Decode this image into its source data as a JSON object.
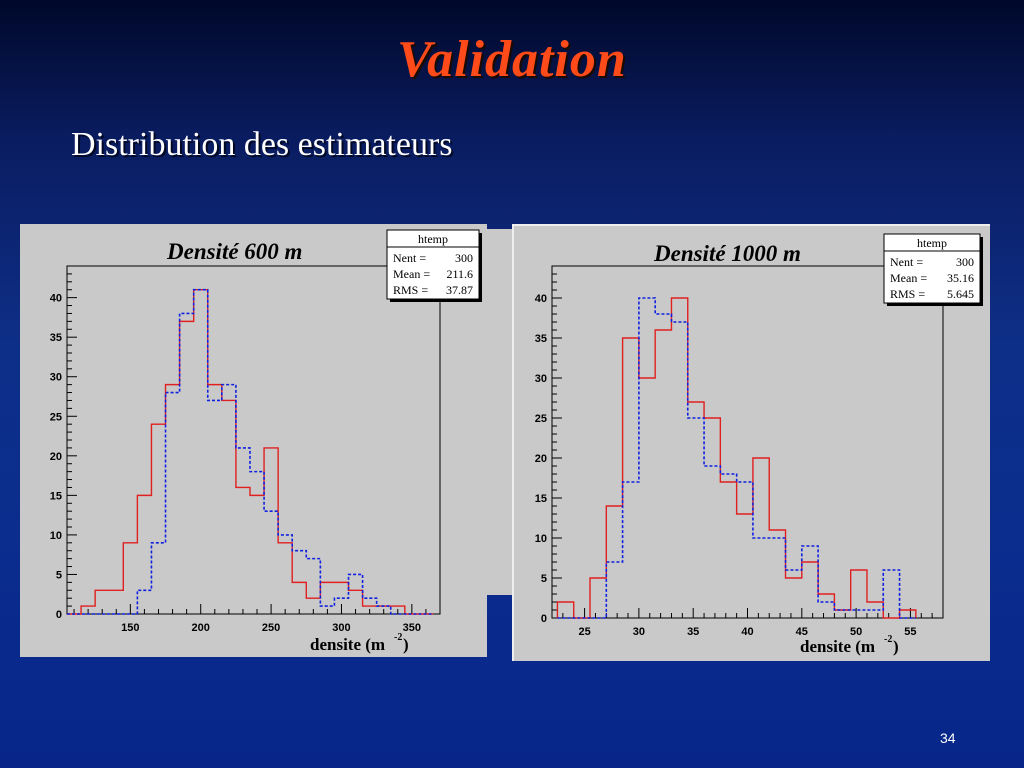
{
  "slide": {
    "title": "Validation",
    "subtitle": "Distribution des estimateurs",
    "page_number": "34"
  },
  "colors": {
    "red_series": "#e02020",
    "blue_series": "#1020e0"
  },
  "chart_data": [
    {
      "type": "bar",
      "style": "step-histogram",
      "title": "Densité 600 m",
      "xlabel": "densite (m",
      "xlabel_sup": "-2",
      "xlabel_close": ")",
      "ylabel": "",
      "xlim": [
        105,
        370
      ],
      "ylim": [
        0,
        44
      ],
      "x_ticks": [
        150,
        200,
        250,
        300,
        350
      ],
      "y_ticks": [
        0,
        5,
        10,
        15,
        20,
        25,
        30,
        35,
        40
      ],
      "grid": false,
      "stats_box": {
        "name": "htemp",
        "lines": [
          {
            "label": "Nent = ",
            "value": "300"
          },
          {
            "label": "Mean  = ",
            "value": "211.6"
          },
          {
            "label": "RMS   = ",
            "value": "37.87"
          }
        ]
      },
      "series": [
        {
          "line": "solid",
          "bin_edges": [
            105,
            115,
            125,
            135,
            145,
            155,
            165,
            175,
            185,
            195,
            205,
            215,
            225,
            235,
            245,
            255,
            265,
            275,
            285,
            295,
            305,
            315,
            325,
            335,
            345,
            355,
            365
          ],
          "values": [
            0,
            1,
            3,
            3,
            9,
            15,
            24,
            29,
            37,
            41,
            29,
            27,
            16,
            15,
            21,
            9,
            4,
            2,
            4,
            4,
            3,
            1,
            1,
            1,
            0,
            0
          ]
        },
        {
          "line": "dashed",
          "bin_edges": [
            105,
            115,
            125,
            135,
            145,
            155,
            165,
            175,
            185,
            195,
            205,
            215,
            225,
            235,
            245,
            255,
            265,
            275,
            285,
            295,
            305,
            315,
            325,
            335,
            345,
            355,
            365
          ],
          "values": [
            0,
            0,
            0,
            0,
            0,
            3,
            9,
            28,
            38,
            41,
            27,
            29,
            21,
            18,
            13,
            10,
            8,
            7,
            1,
            2,
            5,
            2,
            1,
            0,
            0,
            0
          ]
        }
      ]
    },
    {
      "type": "bar",
      "style": "step-histogram",
      "title": "Densité 1000 m",
      "xlabel": "densite (m",
      "xlabel_sup": "-2",
      "xlabel_close": ")",
      "ylabel": "",
      "xlim": [
        22,
        58
      ],
      "ylim": [
        0,
        44
      ],
      "x_ticks": [
        25,
        30,
        35,
        40,
        45,
        50,
        55
      ],
      "y_ticks": [
        0,
        5,
        10,
        15,
        20,
        25,
        30,
        35,
        40
      ],
      "grid": false,
      "stats_box": {
        "name": "htemp",
        "lines": [
          {
            "label": "Nent = ",
            "value": "300"
          },
          {
            "label": "Mean  = ",
            "value": "35.16"
          },
          {
            "label": "RMS   = ",
            "value": "5.645"
          }
        ]
      },
      "series": [
        {
          "line": "solid",
          "bin_edges": [
            22.5,
            24,
            25.5,
            27,
            28.5,
            30,
            31.5,
            33,
            34.5,
            36,
            37.5,
            39,
            40.5,
            42,
            43.5,
            45,
            46.5,
            48,
            49.5,
            51,
            52.5,
            54,
            55.5
          ],
          "values": [
            2,
            0,
            5,
            14,
            35,
            30,
            36,
            40,
            27,
            25,
            17,
            13,
            20,
            11,
            5,
            7,
            3,
            1,
            6,
            2,
            0,
            1
          ]
        },
        {
          "line": "dashed",
          "bin_edges": [
            22.5,
            24,
            25.5,
            27,
            28.5,
            30,
            31.5,
            33,
            34.5,
            36,
            37.5,
            39,
            40.5,
            42,
            43.5,
            45,
            46.5,
            48,
            49.5,
            51,
            52.5,
            54,
            55.5
          ],
          "values": [
            0,
            0,
            0,
            7,
            17,
            40,
            38,
            37,
            25,
            19,
            18,
            17,
            10,
            10,
            6,
            9,
            2,
            1,
            1,
            1,
            6,
            0
          ]
        }
      ]
    }
  ]
}
